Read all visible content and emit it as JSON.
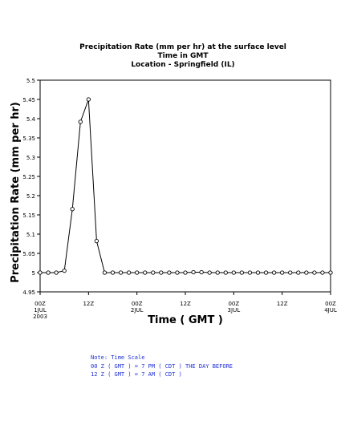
{
  "chart_data": {
    "type": "line",
    "title": [
      "Precipitation Rate (mm per hr) at the surface level",
      "Time in GMT",
      "Location - Springfield (IL)"
    ],
    "xlabel": "Time ( GMT )",
    "ylabel": "Precipitation Rate (mm per hr)",
    "ylim": [
      4.95,
      5.5
    ],
    "yticks": [
      "4.95",
      "5",
      "5.05",
      "5.1",
      "5.15",
      "5.2",
      "5.25",
      "5.3",
      "5.35",
      "5.4",
      "5.45",
      "5.5"
    ],
    "xlim_hours": [
      0,
      72
    ],
    "xticks": [
      {
        "hour": 0,
        "lines": [
          "00Z",
          "1JUL",
          "2003"
        ]
      },
      {
        "hour": 12,
        "lines": [
          "12Z"
        ]
      },
      {
        "hour": 24,
        "lines": [
          "00Z",
          "2JUL"
        ]
      },
      {
        "hour": 36,
        "lines": [
          "12Z"
        ]
      },
      {
        "hour": 48,
        "lines": [
          "00Z",
          "3JUL"
        ]
      },
      {
        "hour": 60,
        "lines": [
          "12Z"
        ]
      },
      {
        "hour": 72,
        "lines": [
          "00Z",
          "4JUL"
        ]
      }
    ],
    "x_hours": [
      0,
      2,
      4,
      6,
      8,
      10,
      12,
      14,
      16,
      18,
      20,
      22,
      24,
      26,
      28,
      30,
      32,
      34,
      36,
      38,
      40,
      42,
      44,
      46,
      48,
      50,
      52,
      54,
      56,
      58,
      60,
      62,
      64,
      66,
      68,
      70,
      72
    ],
    "values": [
      5.0,
      5.0,
      5.0,
      5.005,
      5.165,
      5.392,
      5.45,
      5.082,
      5.0,
      5.0,
      5.0,
      5.0,
      5.0,
      5.0,
      5.0,
      5.0,
      5.0,
      5.0,
      5.0,
      5.001,
      5.001,
      5.0,
      5.0,
      5.0,
      5.0,
      5.0,
      5.0,
      5.0,
      5.0,
      5.0,
      5.0,
      5.0,
      5.0,
      5.0,
      5.0,
      5.0,
      5.0
    ],
    "grid": false,
    "legend": "none"
  },
  "note": {
    "lines": [
      "Note: Time Scale",
      "00 Z ( GMT ) = 7 PM ( CDT ) THE DAY BEFORE",
      "12 Z ( GMT ) = 7 AM ( CDT )"
    ]
  }
}
